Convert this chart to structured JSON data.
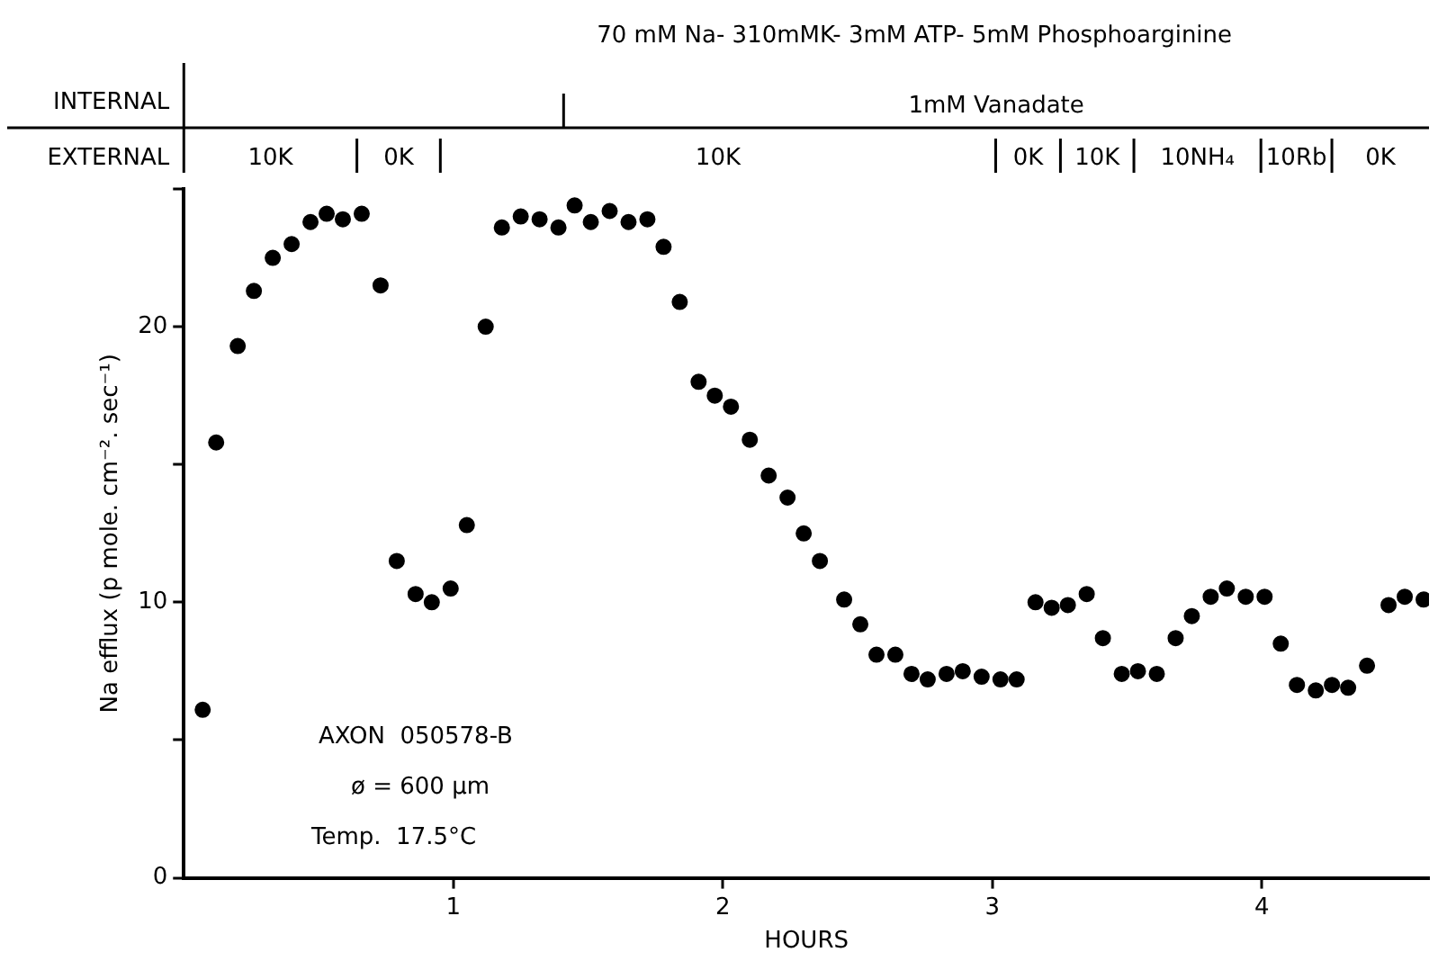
{
  "chart_data": {
    "type": "scatter",
    "title": "70 mM Na- 310mMK- 3mM ATP- 5mM Phosphoarginine",
    "xlabel": "HOURS",
    "ylabel": "Na efflux (p mole. cm⁻². sec⁻¹)",
    "x": [
      0.07,
      0.12,
      0.2,
      0.26,
      0.33,
      0.4,
      0.47,
      0.53,
      0.59,
      0.66,
      0.73,
      0.79,
      0.86,
      0.92,
      0.99,
      1.05,
      1.12,
      1.18,
      1.25,
      1.32,
      1.39,
      1.45,
      1.51,
      1.58,
      1.65,
      1.72,
      1.78,
      1.84,
      1.91,
      1.97,
      2.03,
      2.1,
      2.17,
      2.24,
      2.3,
      2.36,
      2.45,
      2.51,
      2.57,
      2.64,
      2.7,
      2.76,
      2.83,
      2.89,
      2.96,
      3.03,
      3.09,
      3.16,
      3.22,
      3.28,
      3.35,
      3.41,
      3.48,
      3.54,
      3.61,
      3.68,
      3.74,
      3.81,
      3.87,
      3.94,
      4.01,
      4.07,
      4.13,
      4.2,
      4.26,
      4.32,
      4.39,
      4.47,
      4.53,
      4.6
    ],
    "series": [
      {
        "color": "#000000",
        "values": [
          6.1,
          15.8,
          19.3,
          21.3,
          22.5,
          23.0,
          23.8,
          24.1,
          23.9,
          24.1,
          21.5,
          11.5,
          10.3,
          10.0,
          10.5,
          12.8,
          20.0,
          23.6,
          24.0,
          23.9,
          23.6,
          24.4,
          23.8,
          24.2,
          23.8,
          23.9,
          22.9,
          20.9,
          18.0,
          17.5,
          17.1,
          15.9,
          14.6,
          13.8,
          12.5,
          11.5,
          10.1,
          9.2,
          8.1,
          8.1,
          7.4,
          7.2,
          7.4,
          7.5,
          7.3,
          7.2,
          7.2,
          10.0,
          9.8,
          9.9,
          10.3,
          8.7,
          7.4,
          7.5,
          7.4,
          8.7,
          9.5,
          10.2,
          10.5,
          10.2,
          10.2,
          8.5,
          7.0,
          6.8,
          7.0,
          6.9,
          7.7,
          9.9,
          10.2,
          10.1
        ]
      }
    ],
    "xlim": [
      0,
      4.62
    ],
    "xticks": [
      1,
      2,
      3,
      4
    ],
    "ylim": [
      0,
      25
    ],
    "yticks": [
      0,
      {
        "value": 5,
        "label": null
      },
      10,
      {
        "value": 15,
        "label": null
      },
      20,
      {
        "value": 25,
        "label": null
      }
    ],
    "marker": "circle",
    "legend": false,
    "grid": false,
    "annotations": [
      "INTERNAL",
      "1mM Vanadate",
      "EXTERNAL",
      "10K",
      "0K",
      "10K",
      "0K",
      "10K",
      "10NH₄",
      "10Rb",
      "0K",
      "AXON  050578-B",
      "ø = 600 µm",
      "Temp.  17.5°C"
    ]
  }
}
